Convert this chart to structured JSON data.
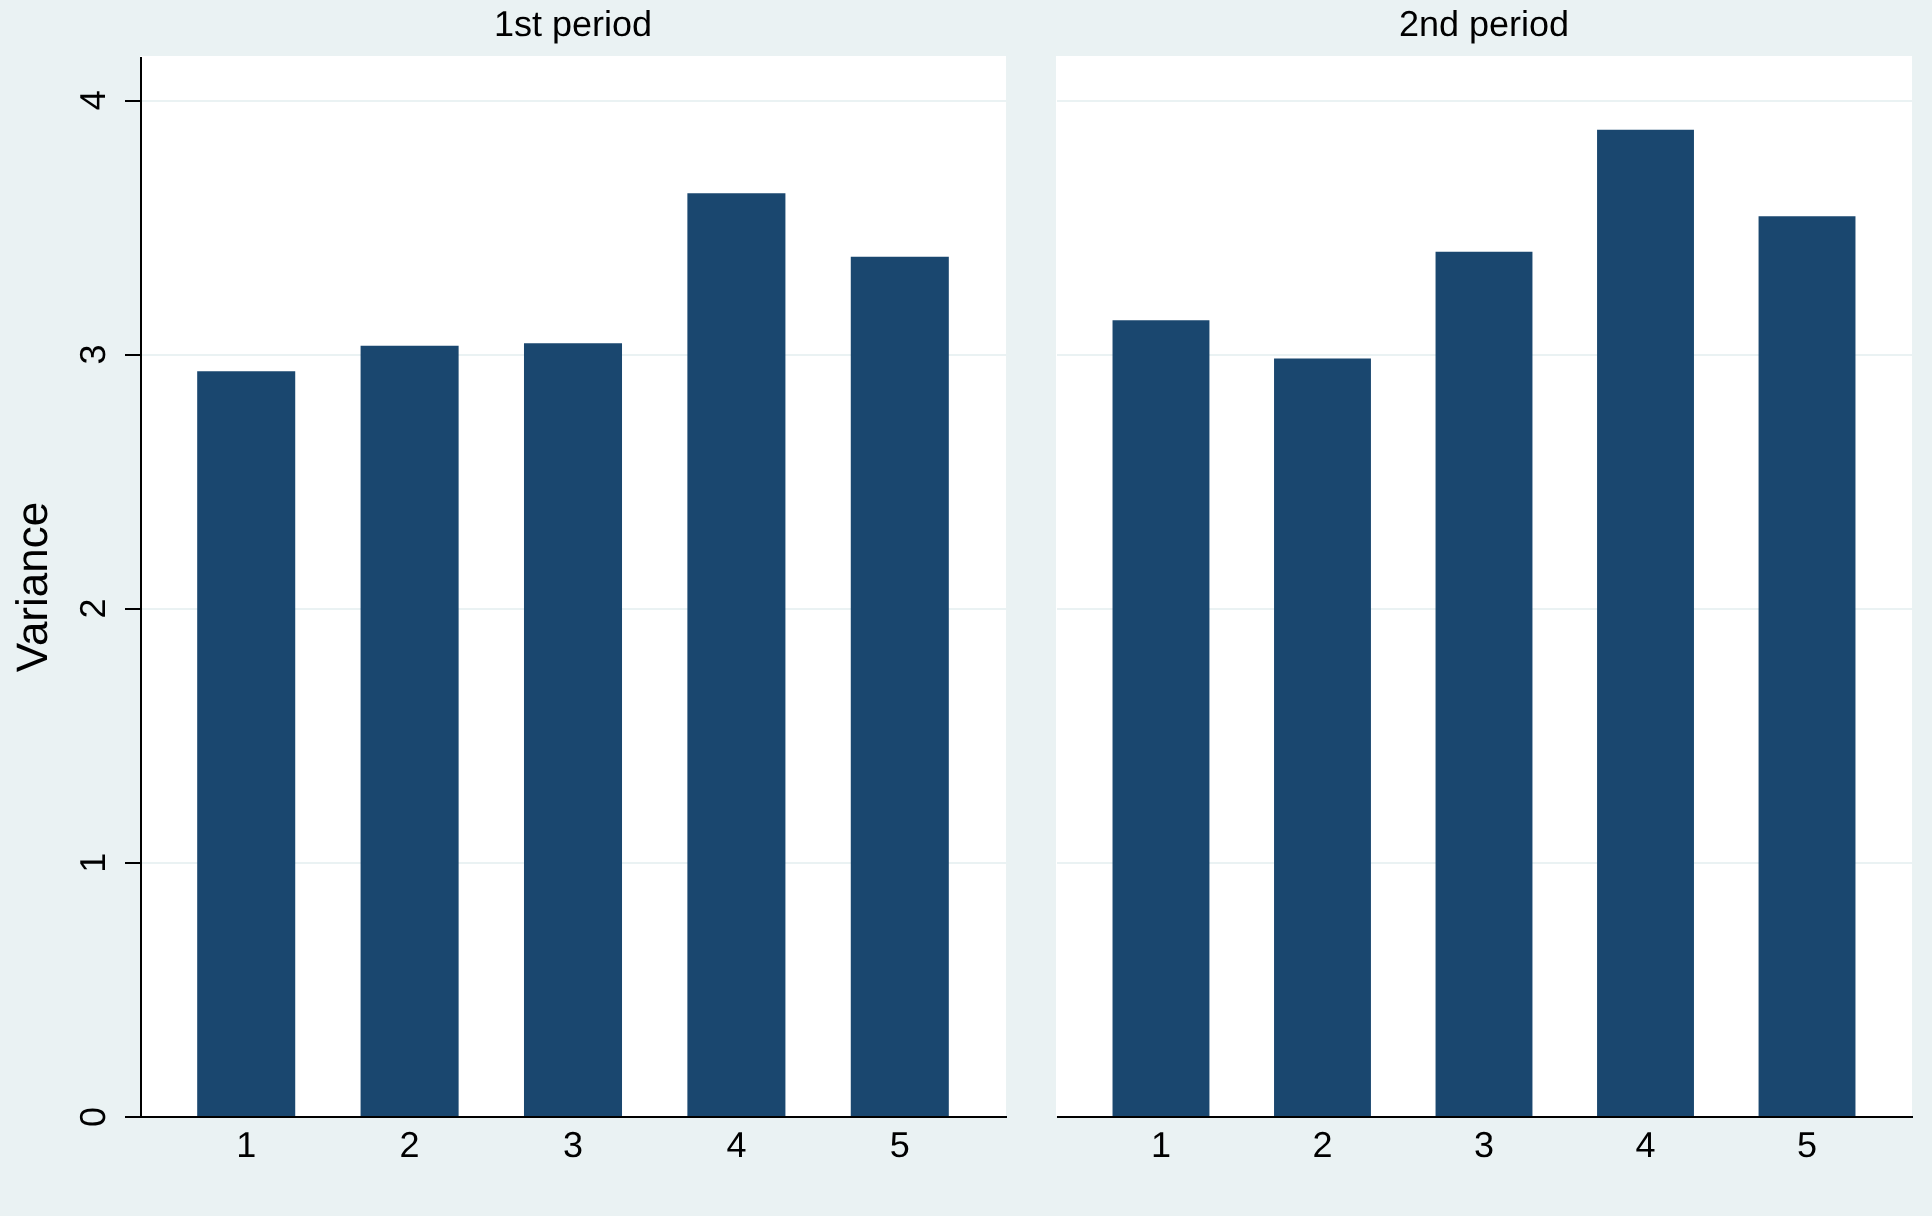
{
  "chart_data": [
    {
      "type": "bar",
      "title": "1st period",
      "ylabel": "Variance",
      "categories": [
        "1",
        "2",
        "3",
        "4",
        "5"
      ],
      "values": [
        2.93,
        3.03,
        3.04,
        3.63,
        3.38
      ],
      "color": "#1a476f",
      "ylim": [
        0,
        4.17
      ],
      "yticks": [
        0,
        1,
        2,
        3,
        4
      ],
      "grid": "y"
    },
    {
      "type": "bar",
      "title": "2nd period",
      "categories": [
        "1",
        "2",
        "3",
        "4",
        "5"
      ],
      "values": [
        3.13,
        2.98,
        3.4,
        3.88,
        3.54
      ],
      "color": "#1a476f",
      "ylim": [
        0,
        4.17
      ],
      "yticks": [
        0,
        1,
        2,
        3,
        4
      ],
      "grid": "y",
      "tick_labels": "x"
    }
  ]
}
